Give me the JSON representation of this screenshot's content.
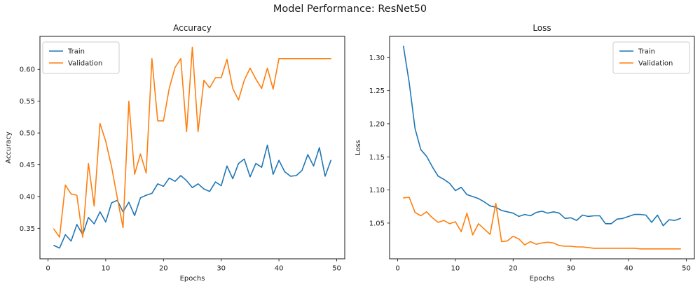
{
  "figure": {
    "title": "Model Performance: ResNet50",
    "background": "#ffffff"
  },
  "colors": {
    "train": "#1f77b4",
    "validation": "#ff7f0e",
    "spine": "#1a1a1a",
    "legend_border": "#cccccc"
  },
  "chart_data": [
    {
      "type": "line",
      "title": "Accuracy",
      "xlabel": "Epochs",
      "ylabel": "Accuracy",
      "grid": false,
      "legend_position": "upper-left",
      "xlim": [
        -1.4,
        51.4
      ],
      "ylim": [
        0.302,
        0.652
      ],
      "xticks": [
        0,
        10,
        20,
        30,
        40,
        50
      ],
      "yticks": [
        0.35,
        0.4,
        0.45,
        0.5,
        0.55,
        0.6
      ],
      "ytick_decimals": 2,
      "x": [
        1,
        2,
        3,
        4,
        5,
        6,
        7,
        8,
        9,
        10,
        11,
        12,
        13,
        14,
        15,
        16,
        17,
        18,
        19,
        20,
        21,
        22,
        23,
        24,
        25,
        26,
        27,
        28,
        29,
        30,
        31,
        32,
        33,
        34,
        35,
        36,
        37,
        38,
        39,
        40,
        41,
        42,
        43,
        44,
        45,
        46,
        47,
        48,
        49
      ],
      "series": [
        {
          "name": "Train",
          "color_key": "train",
          "values": [
            0.323,
            0.319,
            0.34,
            0.33,
            0.356,
            0.34,
            0.367,
            0.357,
            0.376,
            0.36,
            0.39,
            0.394,
            0.376,
            0.391,
            0.37,
            0.398,
            0.402,
            0.405,
            0.42,
            0.416,
            0.429,
            0.424,
            0.433,
            0.425,
            0.414,
            0.42,
            0.412,
            0.408,
            0.423,
            0.417,
            0.448,
            0.428,
            0.452,
            0.459,
            0.431,
            0.452,
            0.446,
            0.481,
            0.435,
            0.457,
            0.439,
            0.432,
            0.433,
            0.441,
            0.466,
            0.448,
            0.477,
            0.432,
            0.457
          ]
        },
        {
          "name": "Validation",
          "color_key": "validation",
          "values": [
            0.349,
            0.336,
            0.418,
            0.404,
            0.402,
            0.336,
            0.452,
            0.385,
            0.515,
            0.487,
            0.447,
            0.398,
            0.351,
            0.55,
            0.435,
            0.467,
            0.437,
            0.617,
            0.519,
            0.519,
            0.57,
            0.603,
            0.617,
            0.502,
            0.635,
            0.502,
            0.583,
            0.571,
            0.587,
            0.587,
            0.616,
            0.57,
            0.552,
            0.583,
            0.602,
            0.585,
            0.57,
            0.602,
            0.569,
            0.617,
            0.617,
            0.617,
            0.617,
            0.617,
            0.617,
            0.617,
            0.617,
            0.617,
            0.617
          ]
        }
      ]
    },
    {
      "type": "line",
      "title": "Loss",
      "xlabel": "Epochs",
      "ylabel": "Loss",
      "grid": false,
      "legend_position": "upper-right",
      "xlim": [
        -1.4,
        51.4
      ],
      "ylim": [
        0.996,
        1.332
      ],
      "xticks": [
        0,
        10,
        20,
        30,
        40,
        50
      ],
      "yticks": [
        1.05,
        1.1,
        1.15,
        1.2,
        1.25,
        1.3
      ],
      "ytick_decimals": 2,
      "x": [
        1,
        2,
        3,
        4,
        5,
        6,
        7,
        8,
        9,
        10,
        11,
        12,
        13,
        14,
        15,
        16,
        17,
        18,
        19,
        20,
        21,
        22,
        23,
        24,
        25,
        26,
        27,
        28,
        29,
        30,
        31,
        32,
        33,
        34,
        35,
        36,
        37,
        38,
        39,
        40,
        41,
        42,
        43,
        44,
        45,
        46,
        47,
        48,
        49
      ],
      "series": [
        {
          "name": "Train",
          "color_key": "train",
          "values": [
            1.317,
            1.262,
            1.193,
            1.161,
            1.151,
            1.135,
            1.121,
            1.116,
            1.11,
            1.099,
            1.104,
            1.093,
            1.09,
            1.087,
            1.082,
            1.076,
            1.074,
            1.069,
            1.067,
            1.065,
            1.06,
            1.063,
            1.061,
            1.066,
            1.068,
            1.065,
            1.067,
            1.065,
            1.057,
            1.058,
            1.054,
            1.062,
            1.06,
            1.061,
            1.061,
            1.049,
            1.049,
            1.056,
            1.057,
            1.06,
            1.063,
            1.063,
            1.062,
            1.051,
            1.062,
            1.046,
            1.055,
            1.054,
            1.057
          ]
        },
        {
          "name": "Validation",
          "color_key": "validation",
          "values": [
            1.088,
            1.089,
            1.066,
            1.061,
            1.067,
            1.058,
            1.051,
            1.054,
            1.049,
            1.052,
            1.037,
            1.065,
            1.032,
            1.049,
            1.041,
            1.033,
            1.08,
            1.022,
            1.023,
            1.03,
            1.026,
            1.017,
            1.022,
            1.018,
            1.02,
            1.021,
            1.02,
            1.016,
            1.015,
            1.015,
            1.014,
            1.014,
            1.013,
            1.012,
            1.012,
            1.012,
            1.012,
            1.012,
            1.012,
            1.012,
            1.012,
            1.011,
            1.011,
            1.011,
            1.011,
            1.011,
            1.011,
            1.011,
            1.011
          ]
        }
      ]
    }
  ]
}
